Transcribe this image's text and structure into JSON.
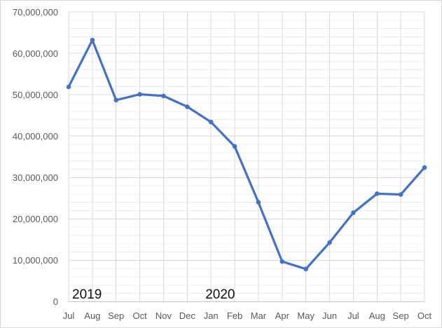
{
  "chart_data": {
    "type": "line",
    "title": "",
    "xlabel": "",
    "ylabel": "",
    "x": [
      "Jul",
      "Aug",
      "Sep",
      "Oct",
      "Nov",
      "Dec",
      "Jan",
      "Feb",
      "Mar",
      "Apr",
      "May",
      "Jun",
      "Jul",
      "Aug",
      "Sep",
      "Oct"
    ],
    "series": [
      {
        "name": "",
        "values": [
          51900000,
          63200000,
          48700000,
          50100000,
          49700000,
          47100000,
          43400000,
          37500000,
          24000000,
          9700000,
          7900000,
          14300000,
          21500000,
          26100000,
          25900000,
          32400000
        ]
      }
    ],
    "ylim": [
      0,
      70000000
    ],
    "y_major_unit": 10000000,
    "y_minor_unit": 2000000,
    "y_tick_labels": [
      "0",
      "10,000,000",
      "20,000,000",
      "30,000,000",
      "40,000,000",
      "50,000,000",
      "60,000,000",
      "70,000,000"
    ],
    "annotations": [
      {
        "text": "2019",
        "category_index": 0,
        "dx": 5
      },
      {
        "text": "2020",
        "category_index": 6,
        "dx": -8
      }
    ],
    "grid": "major-and-minor-horizontal, major-vertical-per-category",
    "legend_position": "none",
    "colors": {
      "line": "#4472C4",
      "marker": "#4472C4",
      "major_grid": "#d9d9d9",
      "minor_grid": "#ececec",
      "axis_line": "#c6c6c6",
      "tick_text": "#595959",
      "annotation_text": "#111111",
      "background": "#ffffff",
      "border": "#d7d7d7"
    }
  }
}
